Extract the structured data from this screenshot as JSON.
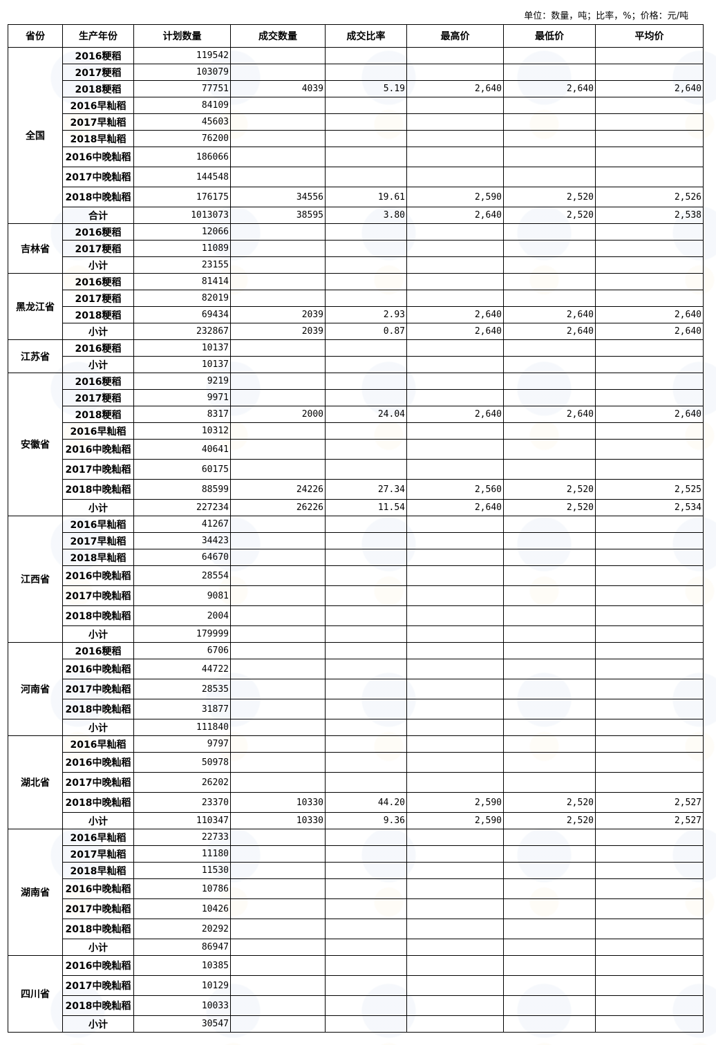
{
  "unit_note": "单位：数量，吨；比率，%；价格：元/吨",
  "headers": [
    "省份",
    "生产年份",
    "计划数量",
    "成交数量",
    "成交比率",
    "最高价",
    "最低价",
    "平均价"
  ],
  "provinces": [
    {
      "name": "全国",
      "rows": [
        [
          "2016粳稻",
          "119542",
          "",
          "",
          "",
          "",
          ""
        ],
        [
          "2017粳稻",
          "103079",
          "",
          "",
          "",
          "",
          ""
        ],
        [
          "2018粳稻",
          "77751",
          "4039",
          "5.19",
          "2,640",
          "2,640",
          "2,640"
        ],
        [
          "2016早籼稻",
          "84109",
          "",
          "",
          "",
          "",
          ""
        ],
        [
          "2017早籼稻",
          "45603",
          "",
          "",
          "",
          "",
          ""
        ],
        [
          "2018早籼稻",
          "76200",
          "",
          "",
          "",
          "",
          ""
        ],
        [
          "2016中晚籼稻",
          "186066",
          "",
          "",
          "",
          "",
          ""
        ],
        [
          "2017中晚籼稻",
          "144548",
          "",
          "",
          "",
          "",
          ""
        ],
        [
          "2018中晚籼稻",
          "176175",
          "34556",
          "19.61",
          "2,590",
          "2,520",
          "2,526"
        ],
        [
          "合计",
          "1013073",
          "38595",
          "3.80",
          "2,640",
          "2,520",
          "2,538"
        ]
      ]
    },
    {
      "name": "吉林省",
      "rows": [
        [
          "2016粳稻",
          "12066",
          "",
          "",
          "",
          "",
          ""
        ],
        [
          "2017粳稻",
          "11089",
          "",
          "",
          "",
          "",
          ""
        ],
        [
          "小计",
          "23155",
          "",
          "",
          "",
          "",
          ""
        ]
      ]
    },
    {
      "name": "黑龙江省",
      "rows": [
        [
          "2016粳稻",
          "81414",
          "",
          "",
          "",
          "",
          ""
        ],
        [
          "2017粳稻",
          "82019",
          "",
          "",
          "",
          "",
          ""
        ],
        [
          "2018粳稻",
          "69434",
          "2039",
          "2.93",
          "2,640",
          "2,640",
          "2,640"
        ],
        [
          "小计",
          "232867",
          "2039",
          "0.87",
          "2,640",
          "2,640",
          "2,640"
        ]
      ]
    },
    {
      "name": "江苏省",
      "rows": [
        [
          "2016粳稻",
          "10137",
          "",
          "",
          "",
          "",
          ""
        ],
        [
          "小计",
          "10137",
          "",
          "",
          "",
          "",
          ""
        ]
      ]
    },
    {
      "name": "安徽省",
      "rows": [
        [
          "2016粳稻",
          "9219",
          "",
          "",
          "",
          "",
          ""
        ],
        [
          "2017粳稻",
          "9971",
          "",
          "",
          "",
          "",
          ""
        ],
        [
          "2018粳稻",
          "8317",
          "2000",
          "24.04",
          "2,640",
          "2,640",
          "2,640"
        ],
        [
          "2016早籼稻",
          "10312",
          "",
          "",
          "",
          "",
          ""
        ],
        [
          "2016中晚籼稻",
          "40641",
          "",
          "",
          "",
          "",
          ""
        ],
        [
          "2017中晚籼稻",
          "60175",
          "",
          "",
          "",
          "",
          ""
        ],
        [
          "2018中晚籼稻",
          "88599",
          "24226",
          "27.34",
          "2,560",
          "2,520",
          "2,525"
        ],
        [
          "小计",
          "227234",
          "26226",
          "11.54",
          "2,640",
          "2,520",
          "2,534"
        ]
      ]
    },
    {
      "name": "江西省",
      "rows": [
        [
          "2016早籼稻",
          "41267",
          "",
          "",
          "",
          "",
          ""
        ],
        [
          "2017早籼稻",
          "34423",
          "",
          "",
          "",
          "",
          ""
        ],
        [
          "2018早籼稻",
          "64670",
          "",
          "",
          "",
          "",
          ""
        ],
        [
          "2016中晚籼稻",
          "28554",
          "",
          "",
          "",
          "",
          ""
        ],
        [
          "2017中晚籼稻",
          "9081",
          "",
          "",
          "",
          "",
          ""
        ],
        [
          "2018中晚籼稻",
          "2004",
          "",
          "",
          "",
          "",
          ""
        ],
        [
          "小计",
          "179999",
          "",
          "",
          "",
          "",
          ""
        ]
      ]
    },
    {
      "name": "河南省",
      "rows": [
        [
          "2016粳稻",
          "6706",
          "",
          "",
          "",
          "",
          ""
        ],
        [
          "2016中晚籼稻",
          "44722",
          "",
          "",
          "",
          "",
          ""
        ],
        [
          "2017中晚籼稻",
          "28535",
          "",
          "",
          "",
          "",
          ""
        ],
        [
          "2018中晚籼稻",
          "31877",
          "",
          "",
          "",
          "",
          ""
        ],
        [
          "小计",
          "111840",
          "",
          "",
          "",
          "",
          ""
        ]
      ]
    },
    {
      "name": "湖北省",
      "rows": [
        [
          "2016早籼稻",
          "9797",
          "",
          "",
          "",
          "",
          ""
        ],
        [
          "2016中晚籼稻",
          "50978",
          "",
          "",
          "",
          "",
          ""
        ],
        [
          "2017中晚籼稻",
          "26202",
          "",
          "",
          "",
          "",
          ""
        ],
        [
          "2018中晚籼稻",
          "23370",
          "10330",
          "44.20",
          "2,590",
          "2,520",
          "2,527"
        ],
        [
          "小计",
          "110347",
          "10330",
          "9.36",
          "2,590",
          "2,520",
          "2,527"
        ]
      ]
    },
    {
      "name": "湖南省",
      "rows": [
        [
          "2016早籼稻",
          "22733",
          "",
          "",
          "",
          "",
          ""
        ],
        [
          "2017早籼稻",
          "11180",
          "",
          "",
          "",
          "",
          ""
        ],
        [
          "2018早籼稻",
          "11530",
          "",
          "",
          "",
          "",
          ""
        ],
        [
          "2016中晚籼稻",
          "10786",
          "",
          "",
          "",
          "",
          ""
        ],
        [
          "2017中晚籼稻",
          "10426",
          "",
          "",
          "",
          "",
          ""
        ],
        [
          "2018中晚籼稻",
          "20292",
          "",
          "",
          "",
          "",
          ""
        ],
        [
          "小计",
          "86947",
          "",
          "",
          "",
          "",
          ""
        ]
      ]
    },
    {
      "name": "四川省",
      "rows": [
        [
          "2016中晚籼稻",
          "10385",
          "",
          "",
          "",
          "",
          ""
        ],
        [
          "2017中晚籼稻",
          "10129",
          "",
          "",
          "",
          "",
          ""
        ],
        [
          "2018中晚籼稻",
          "10033",
          "",
          "",
          "",
          "",
          ""
        ],
        [
          "小计",
          "30547",
          "",
          "",
          "",
          "",
          ""
        ]
      ]
    }
  ]
}
